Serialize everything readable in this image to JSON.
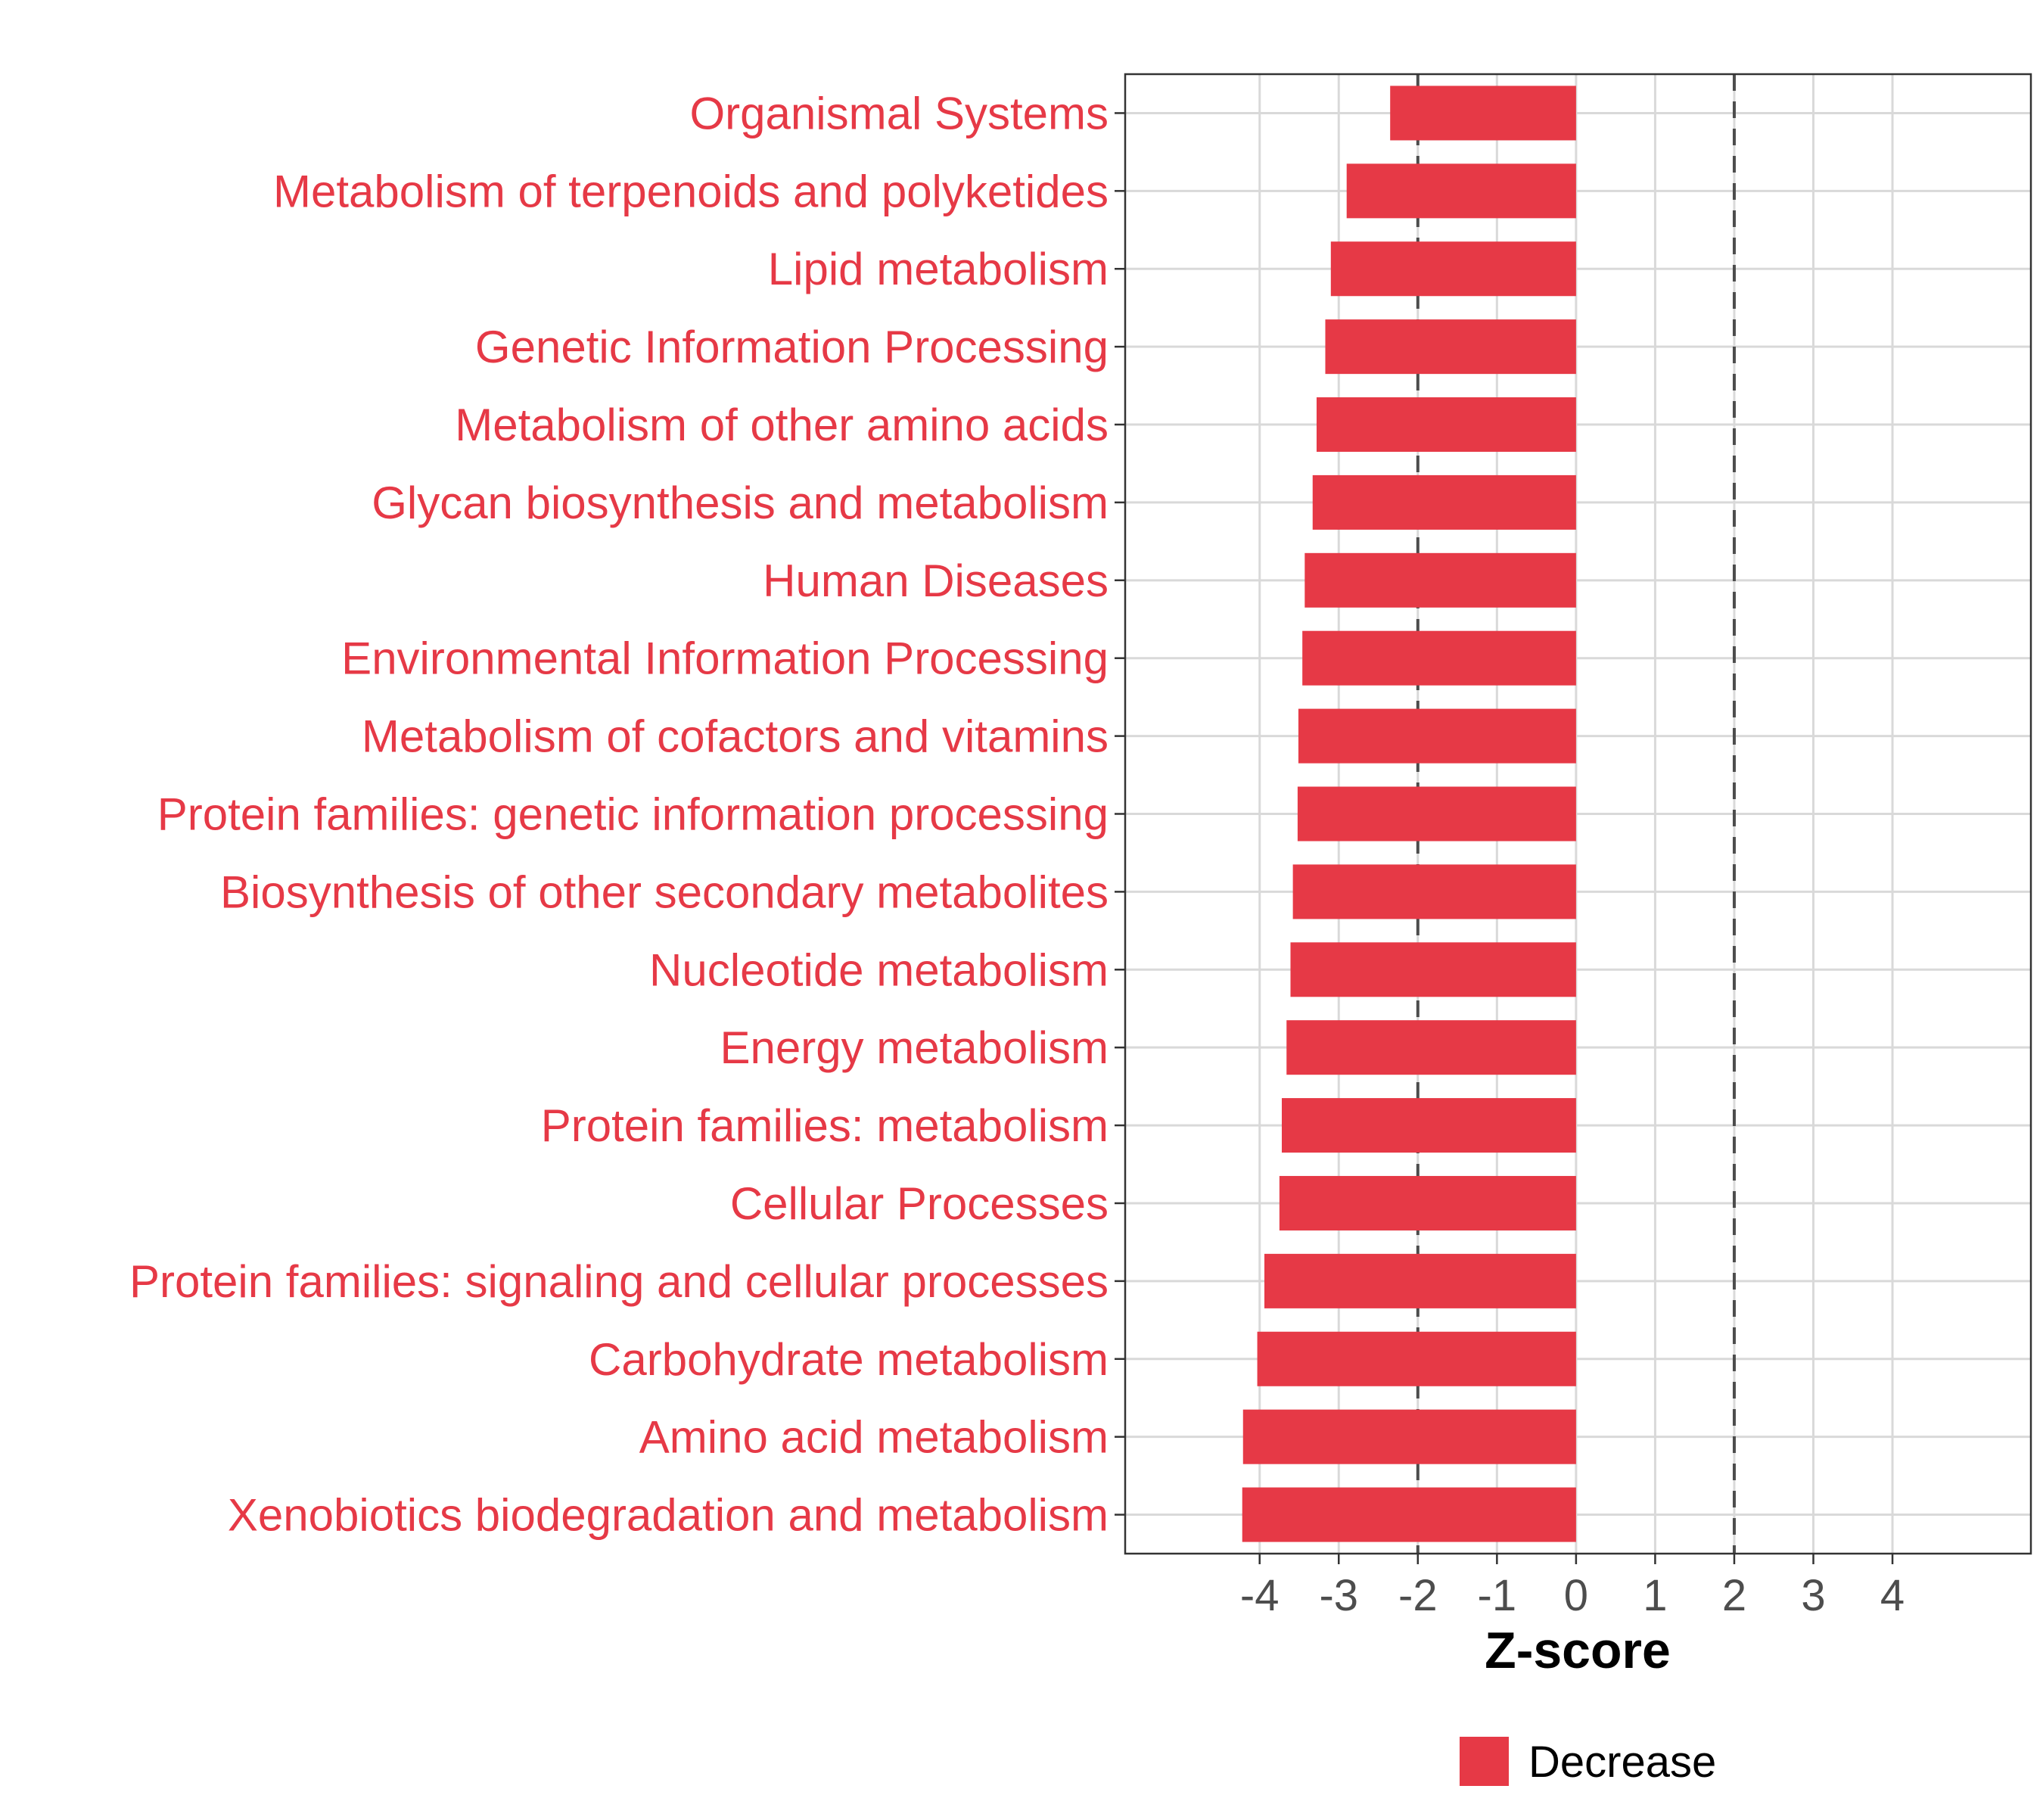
{
  "chart_data": {
    "type": "bar",
    "orientation": "horizontal",
    "categories": [
      "Organismal Systems",
      "Metabolism of terpenoids and polyketides",
      "Lipid metabolism",
      "Genetic Information Processing",
      "Metabolism of other amino acids",
      "Glycan biosynthesis and metabolism",
      "Human Diseases",
      "Environmental Information Processing",
      "Metabolism of cofactors and vitamins",
      "Protein families: genetic information processing",
      "Biosynthesis of other secondary metabolites",
      "Nucleotide metabolism",
      "Energy metabolism",
      "Protein families: metabolism",
      "Cellular Processes",
      "Protein families: signaling and cellular processes",
      "Carbohydrate metabolism",
      "Amino acid metabolism",
      "Xenobiotics biodegradation and metabolism"
    ],
    "values": [
      -2.35,
      -2.9,
      -3.1,
      -3.17,
      -3.28,
      -3.33,
      -3.43,
      -3.46,
      -3.51,
      -3.52,
      -3.58,
      -3.61,
      -3.66,
      -3.72,
      -3.75,
      -3.94,
      -4.03,
      -4.21,
      -4.22
    ],
    "xlabel": "Z-score",
    "ylabel": "",
    "xlim": [
      -5.7,
      5.75
    ],
    "xticks": [
      "-4",
      "-3",
      "-2",
      "-1",
      "0",
      "1",
      "2",
      "3",
      "4"
    ],
    "reference_lines": [
      -2,
      2
    ],
    "grid": true,
    "legend": [
      {
        "label": "Decrease",
        "color": "#e63946"
      }
    ],
    "legend_position": "bottom",
    "colors": {
      "bar": "#e63946",
      "category_label": "#e63946",
      "grid": "#d9d9d9",
      "reference_line": "#4d4d4d",
      "axis": "#333333"
    }
  }
}
